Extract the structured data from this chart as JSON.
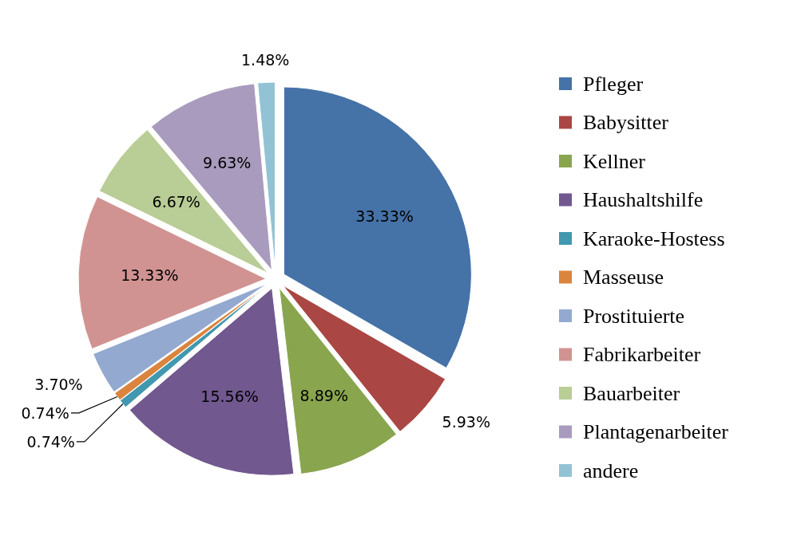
{
  "chart_data": {
    "type": "pie",
    "categories": [
      "Pfleger",
      "Babysitter",
      "Kellner",
      "Haushaltshilfe",
      "Karaoke-Hostess",
      "Masseuse",
      "Prostituierte",
      "Fabrikarbeiter",
      "Bauarbeiter",
      "Plantagenarbeiter",
      "andere"
    ],
    "values": [
      33.33,
      5.93,
      8.89,
      15.56,
      0.74,
      0.74,
      3.7,
      13.33,
      6.67,
      9.63,
      1.48
    ],
    "colors": [
      "#4572a7",
      "#aa4643",
      "#89a54e",
      "#71588f",
      "#4198af",
      "#db843d",
      "#93a9cf",
      "#d19392",
      "#b9cd96",
      "#a99bbd",
      "#92c3d5"
    ],
    "value_labels": [
      "33.33%",
      "5.93%",
      "8.89%",
      "15.56%",
      "0.74%",
      "0.74%",
      "3.70%",
      "13.33%",
      "6.67%",
      "9.63%",
      "1.48%"
    ],
    "legend": "right"
  }
}
